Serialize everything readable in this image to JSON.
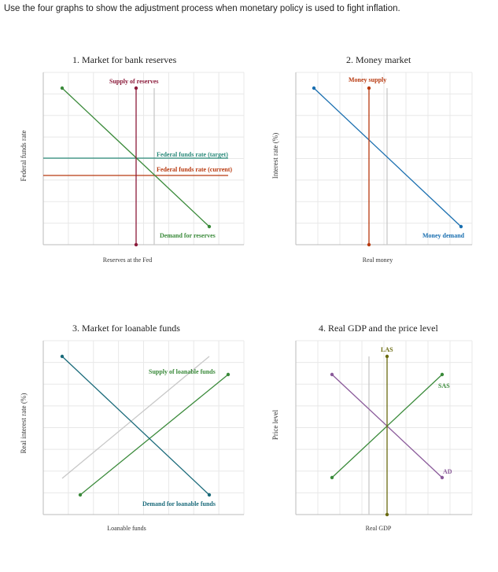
{
  "instruction": "Use the four graphs to show the adjustment process when monetary policy is used to fight inflation.",
  "colors": {
    "grid": "#e8e8e8",
    "axis": "#bbbbbb",
    "green": "#3a8a3a",
    "crimson": "#8b1a3a",
    "teal": "#2a8a7a",
    "orange_red": "#b83a10",
    "blue": "#1a6fb0",
    "dark_teal": "#1a6a7a",
    "olive": "#6a6a10",
    "purple": "#8a5a9a",
    "gray": "#c8c8c8"
  },
  "graph1": {
    "title": "1. Market for bank reserves",
    "ylabel": "Federal funds rate",
    "xlabel": "Reserves at the Fed",
    "supply_label": "Supply of reserves",
    "target_label": "Federal funds rate (target)",
    "current_label": "Federal funds rate (current)",
    "demand_label": "Demand for reserves"
  },
  "graph2": {
    "title": "2. Money market",
    "ylabel": "Interest rate (%)",
    "xlabel": "Real money",
    "supply_label": "Money supply",
    "demand_label": "Money demand"
  },
  "graph3": {
    "title": "3. Market for loanable funds",
    "ylabel": "Real interest rate (%)",
    "xlabel": "Loanable funds",
    "supply_label": "Supply of loanable funds",
    "demand_label": "Demand for loanable funds"
  },
  "graph4": {
    "title": "4. Real GDP and the price level",
    "ylabel": "Price level",
    "xlabel": "Real GDP",
    "las_label": "LAS",
    "sas_label": "SAS",
    "ad_label": "AD"
  }
}
